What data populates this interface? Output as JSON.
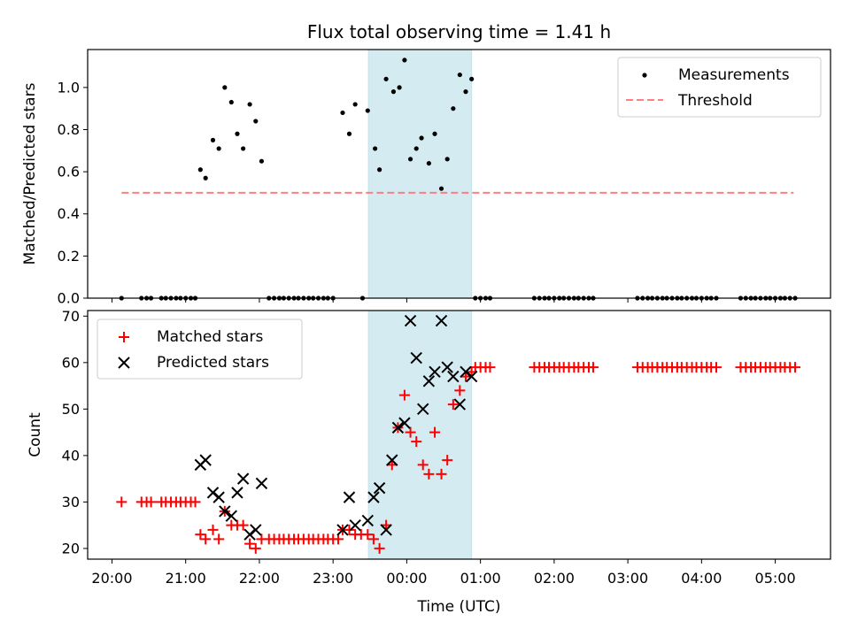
{
  "chart_data": {
    "title": "Flux total observing time = 1.41 h",
    "highlight_span": {
      "start_h": 3.48,
      "end_h": 4.88,
      "color": "#add8e6"
    },
    "x_axis": {
      "label": "Time (UTC)",
      "range_h": [
        -0.33,
        9.75
      ],
      "ticks": [
        {
          "h": 0,
          "label": "20:00"
        },
        {
          "h": 1,
          "label": "21:00"
        },
        {
          "h": 2,
          "label": "22:00"
        },
        {
          "h": 3,
          "label": "23:00"
        },
        {
          "h": 4,
          "label": "00:00"
        },
        {
          "h": 5,
          "label": "01:00"
        },
        {
          "h": 6,
          "label": "02:00"
        },
        {
          "h": 7,
          "label": "03:00"
        },
        {
          "h": 8,
          "label": "04:00"
        },
        {
          "h": 9,
          "label": "05:00"
        }
      ],
      "note": "x values are hours after 20:00 UTC"
    },
    "top": {
      "type": "scatter",
      "ylabel": "Matched/Predicted stars",
      "ylim": [
        0,
        1.18
      ],
      "yticks": [
        {
          "v": 0,
          "label": "0.0"
        },
        {
          "v": 0.2,
          "label": "0.2"
        },
        {
          "v": 0.4,
          "label": "0.4"
        },
        {
          "v": 0.6,
          "label": "0.6"
        },
        {
          "v": 0.8,
          "label": "0.8"
        },
        {
          "v": 1.0,
          "label": "1.0"
        }
      ],
      "threshold": {
        "value": 0.5,
        "x_start_h": 0.13,
        "x_end_h": 9.25,
        "color": "#ff7f7f"
      },
      "legend": {
        "placement": "upper-right",
        "items": [
          {
            "name": "measurements",
            "label": "Measurements",
            "marker": "dot",
            "color": "#000000"
          },
          {
            "name": "threshold",
            "label": "Threshold",
            "marker": "dashed-line",
            "color": "#ff7f7f"
          }
        ]
      },
      "zero_points_h": [
        0.13,
        0.4,
        0.47,
        0.53,
        0.67,
        0.73,
        0.8,
        0.87,
        0.93,
        1.0,
        1.07,
        1.13,
        2.13,
        2.2,
        2.27,
        2.33,
        2.4,
        2.47,
        2.53,
        2.6,
        2.67,
        2.73,
        2.8,
        2.87,
        2.93,
        3.0,
        3.4,
        4.93,
        5.0,
        5.07,
        5.13,
        5.73,
        5.8,
        5.87,
        5.93,
        6.0,
        6.07,
        6.13,
        6.2,
        6.27,
        6.33,
        6.4,
        6.47,
        6.53,
        7.13,
        7.2,
        7.27,
        7.33,
        7.4,
        7.47,
        7.53,
        7.6,
        7.67,
        7.73,
        7.8,
        7.87,
        7.93,
        8.0,
        8.07,
        8.13,
        8.2,
        8.53,
        8.6,
        8.67,
        8.73,
        8.8,
        8.87,
        8.93,
        9.0,
        9.07,
        9.13,
        9.2,
        9.27
      ],
      "points": [
        {
          "x": 1.2,
          "y": 0.61
        },
        {
          "x": 1.27,
          "y": 0.57
        },
        {
          "x": 1.37,
          "y": 0.75
        },
        {
          "x": 1.45,
          "y": 0.71
        },
        {
          "x": 1.53,
          "y": 1.0
        },
        {
          "x": 1.62,
          "y": 0.93
        },
        {
          "x": 1.7,
          "y": 0.78
        },
        {
          "x": 1.78,
          "y": 0.71
        },
        {
          "x": 1.87,
          "y": 0.92
        },
        {
          "x": 1.95,
          "y": 0.84
        },
        {
          "x": 2.03,
          "y": 0.65
        },
        {
          "x": 3.13,
          "y": 0.88
        },
        {
          "x": 3.22,
          "y": 0.78
        },
        {
          "x": 3.3,
          "y": 0.92
        },
        {
          "x": 3.47,
          "y": 0.89
        },
        {
          "x": 3.57,
          "y": 0.71
        },
        {
          "x": 3.63,
          "y": 0.61
        },
        {
          "x": 3.72,
          "y": 1.04
        },
        {
          "x": 3.82,
          "y": 0.98
        },
        {
          "x": 3.9,
          "y": 1.0
        },
        {
          "x": 3.97,
          "y": 1.13
        },
        {
          "x": 4.05,
          "y": 0.66
        },
        {
          "x": 4.13,
          "y": 0.71
        },
        {
          "x": 4.2,
          "y": 0.76
        },
        {
          "x": 4.3,
          "y": 0.64
        },
        {
          "x": 4.38,
          "y": 0.78
        },
        {
          "x": 4.47,
          "y": 0.52
        },
        {
          "x": 4.55,
          "y": 0.66
        },
        {
          "x": 4.63,
          "y": 0.9
        },
        {
          "x": 4.72,
          "y": 1.06
        },
        {
          "x": 4.8,
          "y": 0.98
        },
        {
          "x": 4.88,
          "y": 1.04
        }
      ]
    },
    "bottom": {
      "type": "scatter",
      "ylabel": "Count",
      "ylim": [
        17.7,
        71.2
      ],
      "yticks": [
        {
          "v": 20,
          "label": "20"
        },
        {
          "v": 30,
          "label": "30"
        },
        {
          "v": 40,
          "label": "40"
        },
        {
          "v": 50,
          "label": "50"
        },
        {
          "v": 60,
          "label": "60"
        },
        {
          "v": 70,
          "label": "70"
        }
      ],
      "legend": {
        "placement": "upper-left",
        "items": [
          {
            "name": "matched",
            "label": "Matched stars",
            "marker": "plus",
            "color": "#ff0000"
          },
          {
            "name": "predicted",
            "label": "Predicted stars",
            "marker": "x",
            "color": "#000000"
          }
        ]
      },
      "matched_runs": [
        {
          "y": 30,
          "x": [
            0.13,
            0.4,
            0.47,
            0.53,
            0.67,
            0.73,
            0.8,
            0.87,
            0.93,
            1.0,
            1.07,
            1.13
          ]
        },
        {
          "y": 22,
          "x": [
            2.13,
            2.2,
            2.27,
            2.33,
            2.4,
            2.47,
            2.53,
            2.6,
            2.67,
            2.73,
            2.8,
            2.87,
            2.93,
            3.0
          ]
        },
        {
          "y": 59,
          "x": [
            4.93,
            5.0,
            5.07,
            5.13,
            5.73,
            5.8,
            5.87,
            5.93,
            6.0,
            6.07,
            6.13,
            6.2,
            6.27,
            6.33,
            6.4,
            6.47,
            6.53,
            7.13,
            7.2,
            7.27,
            7.33,
            7.4,
            7.47,
            7.53,
            7.6,
            7.67,
            7.73,
            7.8,
            7.87,
            7.93,
            8.0,
            8.07,
            8.13,
            8.2,
            8.53,
            8.6,
            8.67,
            8.73,
            8.8,
            8.87,
            8.93,
            9.0,
            9.07,
            9.13,
            9.2,
            9.27
          ]
        }
      ],
      "matched_points": [
        {
          "x": 1.2,
          "y": 23
        },
        {
          "x": 1.27,
          "y": 22
        },
        {
          "x": 1.37,
          "y": 24
        },
        {
          "x": 1.45,
          "y": 22
        },
        {
          "x": 1.53,
          "y": 28
        },
        {
          "x": 1.62,
          "y": 25
        },
        {
          "x": 1.7,
          "y": 25
        },
        {
          "x": 1.78,
          "y": 25
        },
        {
          "x": 1.87,
          "y": 21
        },
        {
          "x": 1.95,
          "y": 20
        },
        {
          "x": 2.03,
          "y": 22
        },
        {
          "x": 3.07,
          "y": 22
        },
        {
          "x": 3.13,
          "y": 24
        },
        {
          "x": 3.22,
          "y": 24
        },
        {
          "x": 3.3,
          "y": 23
        },
        {
          "x": 3.38,
          "y": 23
        },
        {
          "x": 3.47,
          "y": 23
        },
        {
          "x": 3.55,
          "y": 22
        },
        {
          "x": 3.63,
          "y": 20
        },
        {
          "x": 3.72,
          "y": 25
        },
        {
          "x": 3.8,
          "y": 38
        },
        {
          "x": 3.88,
          "y": 46
        },
        {
          "x": 3.97,
          "y": 53
        },
        {
          "x": 4.05,
          "y": 45
        },
        {
          "x": 4.13,
          "y": 43
        },
        {
          "x": 4.22,
          "y": 38
        },
        {
          "x": 4.3,
          "y": 36
        },
        {
          "x": 4.38,
          "y": 45
        },
        {
          "x": 4.47,
          "y": 36
        },
        {
          "x": 4.55,
          "y": 39
        },
        {
          "x": 4.63,
          "y": 51
        },
        {
          "x": 4.72,
          "y": 54
        },
        {
          "x": 4.8,
          "y": 57
        },
        {
          "x": 4.88,
          "y": 58
        }
      ],
      "predicted_points": [
        {
          "x": 1.2,
          "y": 38
        },
        {
          "x": 1.27,
          "y": 39
        },
        {
          "x": 1.37,
          "y": 32
        },
        {
          "x": 1.45,
          "y": 31
        },
        {
          "x": 1.53,
          "y": 28
        },
        {
          "x": 1.62,
          "y": 27
        },
        {
          "x": 1.7,
          "y": 32
        },
        {
          "x": 1.78,
          "y": 35
        },
        {
          "x": 1.87,
          "y": 23
        },
        {
          "x": 1.95,
          "y": 24
        },
        {
          "x": 2.03,
          "y": 34
        },
        {
          "x": 3.13,
          "y": 24
        },
        {
          "x": 3.22,
          "y": 31
        },
        {
          "x": 3.3,
          "y": 25
        },
        {
          "x": 3.47,
          "y": 26
        },
        {
          "x": 3.55,
          "y": 31
        },
        {
          "x": 3.63,
          "y": 33
        },
        {
          "x": 3.72,
          "y": 24
        },
        {
          "x": 3.8,
          "y": 39
        },
        {
          "x": 3.88,
          "y": 46
        },
        {
          "x": 3.97,
          "y": 47
        },
        {
          "x": 4.05,
          "y": 69
        },
        {
          "x": 4.13,
          "y": 61
        },
        {
          "x": 4.22,
          "y": 50
        },
        {
          "x": 4.3,
          "y": 56
        },
        {
          "x": 4.38,
          "y": 58
        },
        {
          "x": 4.47,
          "y": 69
        },
        {
          "x": 4.55,
          "y": 59
        },
        {
          "x": 4.63,
          "y": 57
        },
        {
          "x": 4.72,
          "y": 51
        },
        {
          "x": 4.8,
          "y": 58
        },
        {
          "x": 4.88,
          "y": 57
        }
      ]
    }
  }
}
